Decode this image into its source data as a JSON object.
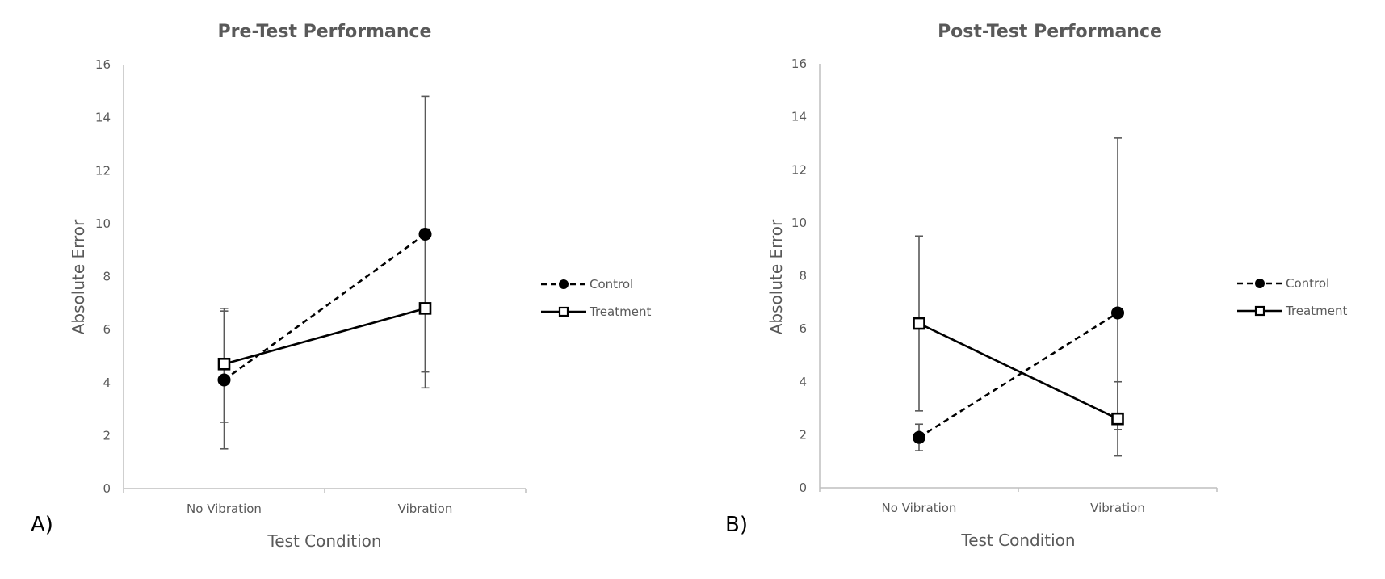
{
  "colors": {
    "axis": "#BFBFBF",
    "text": "#595959",
    "errorbar": "#595959",
    "series": "#000000",
    "panel_label": "#000000"
  },
  "chart_data": [
    {
      "type": "line",
      "panel_label": "A)",
      "title": "Pre-Test Performance",
      "xlabel": "Test Condition",
      "ylabel": "Absolute Error",
      "categories": [
        "No Vibration",
        "Vibration"
      ],
      "ylim": [
        0,
        16
      ],
      "yticks": [
        "0",
        "2",
        "4",
        "6",
        "8",
        "10",
        "12",
        "14",
        "16"
      ],
      "grid": false,
      "legend_position": "right",
      "series": [
        {
          "name": "Control",
          "marker": "filled-circle",
          "line": "dashed",
          "values": [
            4.1,
            9.6
          ],
          "error_low": [
            1.5,
            4.4
          ],
          "error_high": [
            6.7,
            14.8
          ]
        },
        {
          "name": "Treatment",
          "marker": "open-square",
          "line": "solid",
          "values": [
            4.7,
            6.8
          ],
          "error_low": [
            2.5,
            3.8
          ],
          "error_high": [
            6.8,
            9.8
          ]
        }
      ]
    },
    {
      "type": "line",
      "panel_label": "B)",
      "title": "Post-Test Performance",
      "xlabel": "Test Condition",
      "ylabel": "Absolute Error",
      "categories": [
        "No Vibration",
        "Vibration"
      ],
      "ylim": [
        0,
        16
      ],
      "yticks": [
        "0",
        "2",
        "4",
        "6",
        "8",
        "10",
        "12",
        "14",
        "16"
      ],
      "grid": false,
      "legend_position": "right",
      "series": [
        {
          "name": "Control",
          "marker": "filled-circle",
          "line": "dashed",
          "values": [
            1.9,
            6.6
          ],
          "error_low": [
            1.4,
            2.2
          ],
          "error_high": [
            2.4,
            13.2
          ]
        },
        {
          "name": "Treatment",
          "marker": "open-square",
          "line": "solid",
          "values": [
            6.2,
            2.6
          ],
          "error_low": [
            2.9,
            1.2
          ],
          "error_high": [
            9.5,
            4.0
          ]
        }
      ]
    }
  ]
}
